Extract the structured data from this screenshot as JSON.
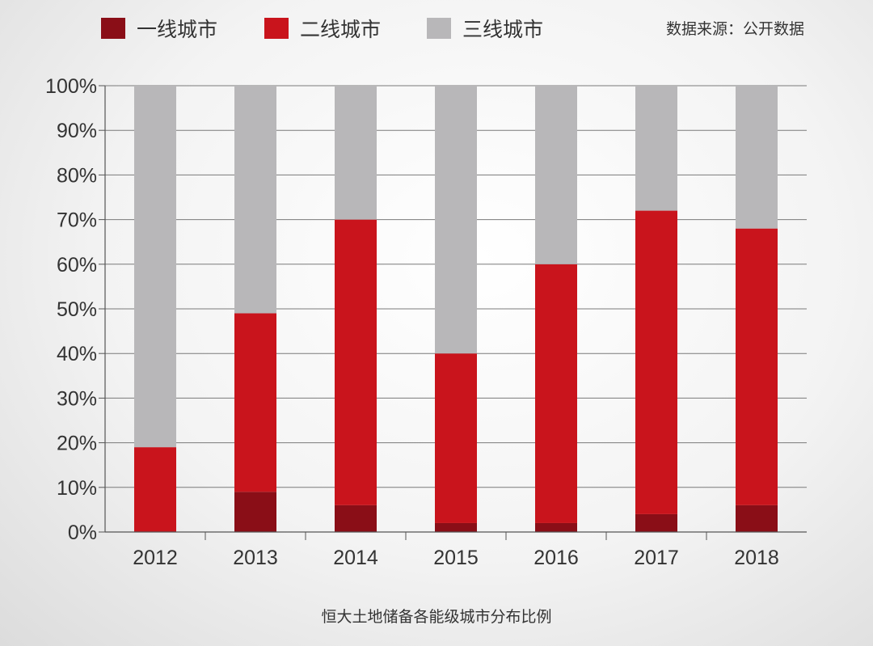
{
  "legend": {
    "source": "数据来源：公开数据"
  },
  "caption": "恒大土地储备各能级城市分布比例",
  "colors": {
    "tier1": "#8a0e17",
    "tier2": "#c9141c",
    "tier3": "#b8b7b9",
    "axis": "#555555",
    "grid": "#7a7a7a",
    "text": "#333333"
  },
  "chart_data": {
    "type": "bar",
    "stacked": true,
    "categories": [
      "2012",
      "2013",
      "2014",
      "2015",
      "2016",
      "2017",
      "2018"
    ],
    "series": [
      {
        "name": "一线城市",
        "color_key": "tier1",
        "values": [
          0,
          9,
          6,
          2,
          2,
          4,
          6
        ]
      },
      {
        "name": "二线城市",
        "color_key": "tier2",
        "values": [
          19,
          40,
          64,
          38,
          58,
          68,
          62
        ]
      },
      {
        "name": "三线城市",
        "color_key": "tier3",
        "values": [
          81,
          51,
          30,
          60,
          40,
          28,
          32
        ]
      }
    ],
    "ylim": [
      0,
      100
    ],
    "yticks": [
      "0%",
      "10%",
      "20%",
      "30%",
      "40%",
      "50%",
      "60%",
      "70%",
      "80%",
      "90%",
      "100%"
    ],
    "legend_position": "top",
    "grid": true
  }
}
